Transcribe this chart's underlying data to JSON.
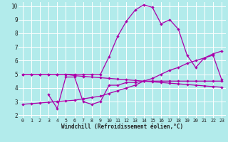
{
  "xlabel": "Windchill (Refroidissement éolien,°C)",
  "bg_color": "#b2ebeb",
  "grid_color": "#ffffff",
  "line_color": "#aa00aa",
  "xlim": [
    -0.5,
    23.5
  ],
  "ylim": [
    1.8,
    10.3
  ],
  "xticks": [
    0,
    1,
    2,
    3,
    4,
    5,
    6,
    7,
    8,
    9,
    10,
    11,
    12,
    13,
    14,
    15,
    16,
    17,
    18,
    19,
    20,
    21,
    22,
    23
  ],
  "yticks": [
    2,
    3,
    4,
    5,
    6,
    7,
    8,
    9,
    10
  ],
  "series": [
    {
      "x": [
        0,
        1,
        2,
        3,
        4,
        5,
        6,
        7,
        8,
        9,
        10,
        11,
        12,
        13,
        14,
        15,
        16,
        17,
        18,
        19,
        20,
        21,
        22,
        23
      ],
      "y": [
        5.0,
        5.0,
        5.0,
        5.0,
        5.0,
        5.0,
        4.9,
        4.85,
        4.8,
        4.75,
        4.7,
        4.65,
        4.6,
        4.55,
        4.5,
        4.45,
        4.4,
        4.35,
        4.3,
        4.25,
        4.2,
        4.15,
        4.1,
        4.05
      ]
    },
    {
      "x": [
        3,
        4,
        5,
        6,
        7,
        8,
        9,
        10,
        11,
        12,
        13,
        14,
        15,
        16,
        17,
        18,
        19,
        20,
        21,
        22,
        23
      ],
      "y": [
        3.5,
        2.5,
        4.8,
        4.8,
        3.0,
        2.8,
        3.0,
        4.2,
        4.2,
        4.4,
        4.4,
        4.5,
        4.5,
        4.5,
        4.5,
        4.5,
        4.5,
        4.5,
        4.5,
        4.5,
        4.5
      ]
    },
    {
      "x": [
        0,
        1,
        2,
        3,
        4,
        5,
        6,
        7,
        8,
        9,
        10,
        11,
        12,
        13,
        14,
        15,
        16,
        17,
        18,
        19,
        20,
        21,
        22,
        23
      ],
      "y": [
        5.0,
        5.0,
        5.0,
        5.0,
        5.0,
        5.0,
        5.0,
        5.0,
        5.0,
        5.0,
        6.3,
        7.8,
        8.9,
        9.7,
        10.1,
        9.9,
        8.7,
        9.0,
        8.3,
        6.4,
        5.5,
        6.2,
        6.4,
        4.6
      ]
    },
    {
      "x": [
        0,
        1,
        2,
        3,
        4,
        5,
        6,
        7,
        8,
        9,
        10,
        11,
        12,
        13,
        14,
        15,
        16,
        17,
        18,
        19,
        20,
        21,
        22,
        23
      ],
      "y": [
        2.8,
        2.85,
        2.9,
        2.95,
        3.0,
        3.05,
        3.1,
        3.2,
        3.3,
        3.4,
        3.6,
        3.8,
        4.0,
        4.2,
        4.5,
        4.7,
        5.0,
        5.3,
        5.5,
        5.8,
        6.0,
        6.2,
        6.5,
        6.7
      ]
    }
  ]
}
